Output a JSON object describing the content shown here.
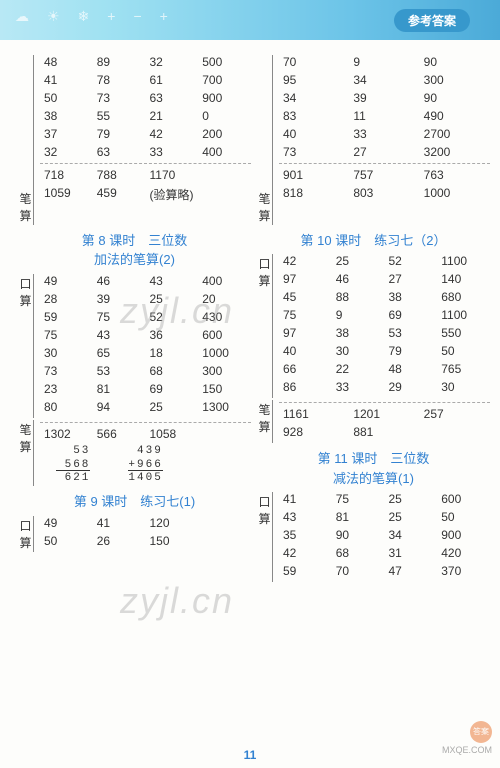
{
  "header": {
    "tag": "参考答案"
  },
  "page_number": "11",
  "watermark": "zyjl.cn",
  "footer_logo": {
    "circle": "答案",
    "url": "MXQE.COM"
  },
  "left": {
    "block1": {
      "rows": [
        [
          "48",
          "89",
          "32",
          "500"
        ],
        [
          "41",
          "78",
          "61",
          "700"
        ],
        [
          "50",
          "73",
          "63",
          "900"
        ],
        [
          "38",
          "55",
          "21",
          "0"
        ],
        [
          "37",
          "79",
          "42",
          "200"
        ],
        [
          "32",
          "63",
          "33",
          "400"
        ]
      ],
      "label": "笔算",
      "calc": [
        [
          "718",
          "788",
          "1170",
          ""
        ],
        [
          "1059",
          "459",
          "(验算略)",
          ""
        ]
      ]
    },
    "title8a": "第 8 课时　三位数",
    "title8b": "加法的笔算(2)",
    "block2": {
      "label": "口算",
      "rows": [
        [
          "49",
          "46",
          "43",
          "400"
        ],
        [
          "28",
          "39",
          "25",
          "20"
        ],
        [
          "59",
          "75",
          "52",
          "430"
        ],
        [
          "75",
          "43",
          "36",
          "600"
        ],
        [
          "30",
          "65",
          "18",
          "1000"
        ],
        [
          "73",
          "53",
          "68",
          "300"
        ],
        [
          "23",
          "81",
          "69",
          "150"
        ],
        [
          "80",
          "94",
          "25",
          "1300"
        ]
      ]
    },
    "block3": {
      "label": "笔算",
      "calc_row": [
        "1302",
        "566",
        "1058",
        ""
      ],
      "arith": [
        {
          "a": "  53",
          "b": " 439",
          "op": "+568",
          "op2": "+966",
          "r": " 621",
          "r2": "1405"
        }
      ]
    },
    "title9": "第 9 课时　练习七(1)",
    "block4": {
      "label": "口算",
      "rows": [
        [
          "49",
          "41",
          "120",
          ""
        ],
        [
          "50",
          "26",
          "150",
          ""
        ]
      ]
    }
  },
  "right": {
    "block1": {
      "rows": [
        [
          "70",
          "9",
          "90"
        ],
        [
          "95",
          "34",
          "300"
        ],
        [
          "34",
          "39",
          "90"
        ],
        [
          "83",
          "11",
          "490"
        ],
        [
          "40",
          "33",
          "2700"
        ],
        [
          "73",
          "27",
          "3200"
        ]
      ],
      "label": "笔算",
      "calc": [
        [
          "901",
          "757",
          "763"
        ],
        [
          "818",
          "803",
          "1000"
        ]
      ]
    },
    "title10": "第 10 课时　练习七（2）",
    "block2": {
      "label": "口算",
      "rows": [
        [
          "42",
          "25",
          "52",
          "1100"
        ],
        [
          "97",
          "46",
          "27",
          "140"
        ],
        [
          "45",
          "88",
          "38",
          "680"
        ],
        [
          "75",
          "9",
          "69",
          "1100"
        ],
        [
          "97",
          "38",
          "53",
          "550"
        ],
        [
          "40",
          "30",
          "79",
          "50"
        ],
        [
          "66",
          "22",
          "48",
          "765"
        ],
        [
          "86",
          "33",
          "29",
          "30"
        ]
      ]
    },
    "block3": {
      "label": "笔算",
      "calc": [
        [
          "1161",
          "1201",
          "257"
        ],
        [
          "928",
          "881",
          ""
        ]
      ]
    },
    "title11a": "第 11 课时　三位数",
    "title11b": "减法的笔算(1)",
    "block4": {
      "label": "口算",
      "rows": [
        [
          "41",
          "75",
          "25",
          "600"
        ],
        [
          "43",
          "81",
          "25",
          "50"
        ],
        [
          "35",
          "90",
          "34",
          "900"
        ],
        [
          "42",
          "68",
          "31",
          "420"
        ],
        [
          "59",
          "70",
          "47",
          "370"
        ]
      ]
    }
  }
}
